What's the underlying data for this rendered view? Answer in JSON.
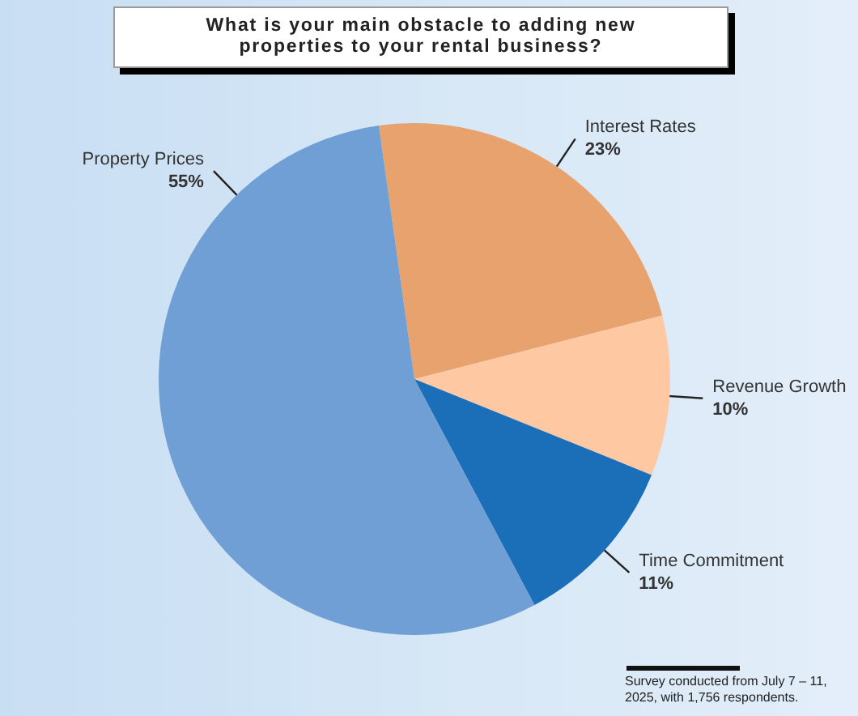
{
  "chart_data": {
    "type": "pie",
    "title": "What is your main obstacle to adding new properties to your rental business?",
    "categories": [
      "Interest Rates",
      "Revenue Growth",
      "Time Commitment",
      "Property Prices"
    ],
    "values": [
      23,
      10,
      11,
      55
    ],
    "value_labels": [
      "23%",
      "10%",
      "11%",
      "55%"
    ],
    "colors": [
      "#e8a26e",
      "#fdc8a2",
      "#1b6fb8",
      "#6f9fd4"
    ],
    "annotations": [
      "Survey conducted from July 7 – 11, 2025, with 1,756 respondents."
    ]
  }
}
